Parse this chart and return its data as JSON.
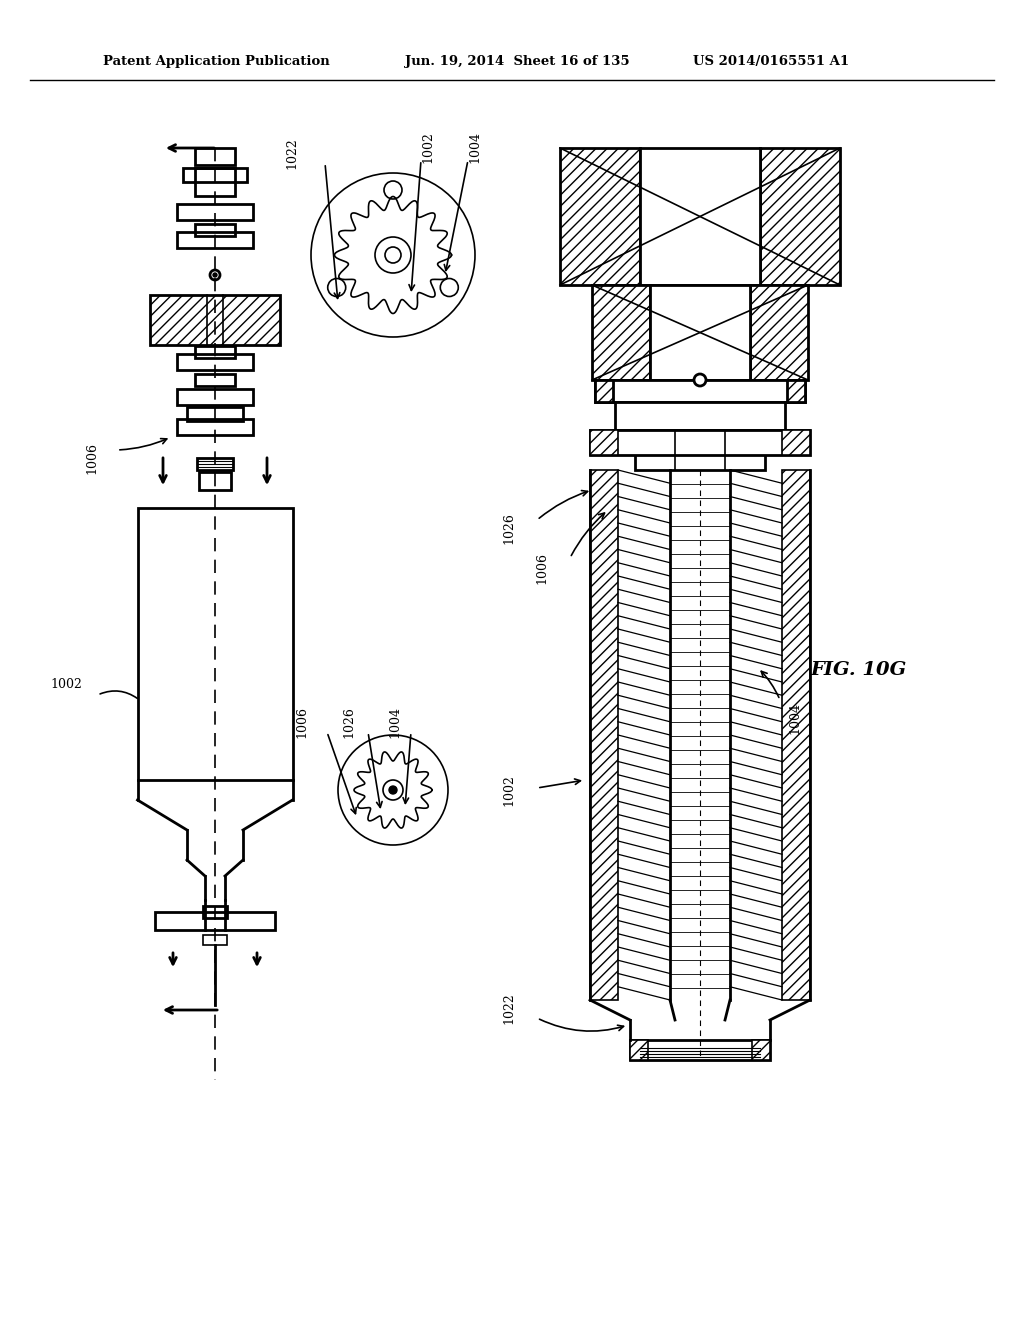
{
  "title_left": "Patent Application Publication",
  "title_mid": "Jun. 19, 2014  Sheet 16 of 135",
  "title_right": "US 2014/0165551 A1",
  "fig_label": "FIG. 10G",
  "background_color": "#ffffff",
  "line_color": "#000000"
}
